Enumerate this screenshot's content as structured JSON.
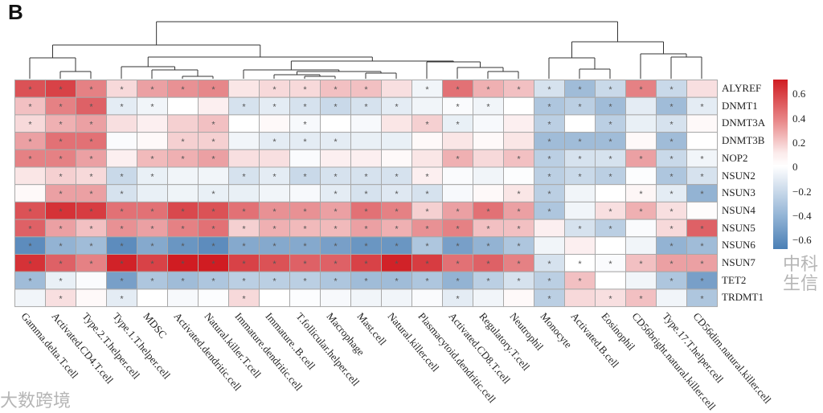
{
  "panel_label": "B",
  "watermarks": [
    "大数跨境",
    "中科生信"
  ],
  "chart_data": {
    "type": "heatmap",
    "title": "",
    "rows": [
      "ALYREF",
      "DNMT1",
      "DNMT3A",
      "DNMT3B",
      "NOP2",
      "NSUN2",
      "NSUN3",
      "NSUN4",
      "NSUN5",
      "NSUN6",
      "NSUN7",
      "TET2",
      "TRDMT1"
    ],
    "columns": [
      "Gamma.delta.T.cell",
      "Activated.CD4.T.cell",
      "Type.2.T.helper.cell",
      "Type.1.T.helper.cell",
      "MDSC",
      "Activated.dendritic.cell",
      "Natural.killer.T.cell",
      "Immature.dendritic.cell",
      "Immature..B.cell",
      "T.follicular.helper.cell",
      "Macrophage",
      "Mast.cell",
      "Natural.killer.cell",
      "Plasmacytoid.dendritic.cell",
      "Activated.CD8.T.cell",
      "Regulatory.T.cell",
      "Neutrophil",
      "Monocyte",
      "Activated.B.cell",
      "Eosinophil",
      "CD56bright.natural.killer.cell",
      "Type.17.T.helper.cell",
      "CD56dim.natural.killer.cell"
    ],
    "values": [
      [
        0.55,
        0.6,
        0.4,
        0.12,
        0.3,
        0.35,
        0.38,
        0.08,
        0.12,
        0.12,
        0.2,
        0.2,
        0.1,
        -0.05,
        0.45,
        0.25,
        0.2,
        -0.15,
        -0.35,
        -0.2,
        0.4,
        -0.2,
        0.1
      ],
      [
        0.2,
        0.4,
        0.5,
        -0.1,
        -0.05,
        0,
        0.05,
        -0.15,
        -0.1,
        -0.15,
        -0.2,
        -0.15,
        -0.1,
        -0.05,
        -0.02,
        -0.05,
        0,
        -0.3,
        -0.25,
        -0.35,
        -0.1,
        -0.35,
        -0.1
      ],
      [
        0.12,
        0.25,
        0.3,
        0.1,
        0.05,
        0.15,
        0.2,
        0,
        0.02,
        -0.03,
        0,
        -0.03,
        0.08,
        0.15,
        -0.08,
        -0.03,
        0.05,
        -0.25,
        0,
        -0.25,
        -0.08,
        -0.15,
        0.02
      ],
      [
        0.3,
        0.45,
        0.45,
        -0.02,
        0.02,
        0.15,
        0.15,
        -0.05,
        -0.1,
        -0.1,
        -0.1,
        -0.08,
        -0.08,
        0.02,
        0.08,
        0.02,
        0.08,
        -0.35,
        -0.35,
        -0.35,
        0.02,
        -0.35,
        0
      ],
      [
        0.4,
        0.4,
        0.3,
        0.05,
        0.22,
        0.25,
        0.3,
        0.1,
        0.1,
        -0.02,
        0.05,
        0.05,
        0.02,
        0.08,
        0.25,
        0.12,
        0.2,
        -0.25,
        -0.15,
        -0.15,
        0.3,
        -0.2,
        -0.05
      ],
      [
        0.08,
        0.15,
        0.12,
        -0.2,
        -0.08,
        -0.05,
        -0.05,
        -0.15,
        -0.1,
        -0.2,
        -0.15,
        -0.15,
        -0.15,
        0.05,
        -0.02,
        -0.05,
        -0.01,
        -0.25,
        -0.2,
        -0.25,
        -0.01,
        -0.3,
        -0.15
      ],
      [
        0.02,
        0.3,
        0.3,
        -0.15,
        -0.08,
        -0.06,
        -0.08,
        -0.08,
        -0.05,
        -0.03,
        -0.1,
        -0.15,
        -0.12,
        -0.15,
        -0.03,
        0.02,
        0.08,
        -0.25,
        -0.05,
        0,
        0.03,
        -0.1,
        -0.4
      ],
      [
        0.55,
        0.65,
        0.62,
        0.45,
        0.45,
        0.58,
        0.55,
        0.45,
        0.35,
        0.35,
        0.3,
        0.45,
        0.4,
        0.15,
        0.3,
        0.45,
        0.3,
        -0.3,
        -0.05,
        0.1,
        0.25,
        0.1,
        0.01
      ],
      [
        0.5,
        0.3,
        0.2,
        0.35,
        0.3,
        0.4,
        0.45,
        0.15,
        0.25,
        0.22,
        0.22,
        0.3,
        0.25,
        0.35,
        0.4,
        0.2,
        0.2,
        0.05,
        -0.15,
        -0.25,
        -0.02,
        0.12,
        0.5
      ],
      [
        -0.6,
        -0.4,
        -0.35,
        -0.6,
        -0.45,
        -0.55,
        -0.6,
        -0.45,
        -0.45,
        -0.45,
        -0.5,
        -0.55,
        -0.55,
        -0.3,
        -0.5,
        -0.4,
        -0.3,
        -0.05,
        0.05,
        0,
        -0.05,
        -0.4,
        -0.35
      ],
      [
        0.65,
        0.5,
        0.4,
        0.7,
        0.6,
        0.72,
        0.72,
        0.6,
        0.55,
        0.5,
        0.5,
        0.6,
        0.7,
        0.62,
        0.45,
        0.5,
        0.4,
        -0.15,
        0,
        -0.02,
        0.2,
        0.3,
        0.3
      ],
      [
        -0.35,
        -0.08,
        -0.02,
        -0.5,
        -0.3,
        -0.35,
        -0.3,
        -0.25,
        -0.25,
        -0.25,
        -0.3,
        -0.35,
        -0.35,
        -0.3,
        -0.4,
        -0.25,
        -0.15,
        -0.25,
        0.2,
        0,
        -0.05,
        -0.3,
        -0.5
      ],
      [
        -0.05,
        0.1,
        0.02,
        -0.1,
        0,
        -0.03,
        -0.01,
        0.12,
        0,
        -0.01,
        -0.03,
        -0.05,
        -0.05,
        -0.02,
        -0.1,
        -0.05,
        0.02,
        -0.25,
        0.12,
        0.1,
        0.2,
        -0.05,
        -0.3
      ]
    ],
    "significance_marker": "*",
    "significant": [
      [
        1,
        1,
        1,
        1,
        1,
        1,
        1,
        0,
        1,
        1,
        1,
        1,
        0,
        1,
        1,
        1,
        1,
        1,
        1,
        1,
        1,
        1,
        0
      ],
      [
        1,
        1,
        1,
        1,
        1,
        0,
        0,
        1,
        1,
        1,
        1,
        1,
        1,
        0,
        1,
        1,
        0,
        1,
        1,
        1,
        0,
        1,
        1
      ],
      [
        1,
        1,
        1,
        0,
        0,
        0,
        1,
        0,
        0,
        1,
        0,
        0,
        0,
        1,
        1,
        0,
        0,
        1,
        0,
        1,
        0,
        1,
        0
      ],
      [
        1,
        1,
        1,
        0,
        0,
        1,
        1,
        0,
        1,
        1,
        1,
        0,
        0,
        0,
        0,
        0,
        0,
        1,
        1,
        1,
        0,
        1,
        0
      ],
      [
        1,
        1,
        1,
        0,
        1,
        1,
        1,
        0,
        0,
        0,
        0,
        0,
        0,
        0,
        1,
        0,
        1,
        1,
        1,
        1,
        1,
        1,
        1
      ],
      [
        0,
        1,
        1,
        1,
        1,
        0,
        0,
        1,
        1,
        1,
        1,
        1,
        1,
        1,
        0,
        0,
        0,
        1,
        1,
        1,
        0,
        1,
        1
      ],
      [
        0,
        1,
        1,
        1,
        0,
        0,
        1,
        0,
        0,
        0,
        1,
        1,
        1,
        1,
        0,
        0,
        1,
        1,
        0,
        0,
        1,
        1,
        1
      ],
      [
        1,
        1,
        1,
        1,
        1,
        1,
        1,
        1,
        1,
        1,
        1,
        1,
        1,
        1,
        1,
        1,
        1,
        1,
        0,
        1,
        1,
        1,
        0
      ],
      [
        1,
        1,
        1,
        1,
        1,
        1,
        1,
        1,
        1,
        1,
        1,
        1,
        1,
        1,
        1,
        1,
        1,
        0,
        1,
        1,
        0,
        1,
        1
      ],
      [
        1,
        1,
        1,
        1,
        1,
        1,
        1,
        1,
        1,
        1,
        1,
        1,
        1,
        1,
        1,
        1,
        1,
        0,
        0,
        0,
        0,
        1,
        1
      ],
      [
        1,
        1,
        1,
        1,
        1,
        1,
        1,
        1,
        1,
        1,
        1,
        1,
        1,
        1,
        1,
        1,
        1,
        1,
        1,
        1,
        1,
        1,
        1
      ],
      [
        1,
        1,
        0,
        1,
        1,
        1,
        1,
        1,
        1,
        1,
        1,
        1,
        1,
        1,
        1,
        1,
        1,
        1,
        1,
        0,
        0,
        1,
        1
      ],
      [
        0,
        1,
        0,
        1,
        0,
        0,
        0,
        1,
        0,
        0,
        0,
        0,
        0,
        0,
        1,
        0,
        0,
        1,
        0,
        1,
        1,
        0,
        1
      ]
    ],
    "colorbar": {
      "ticks": [
        "0.6",
        "0.4",
        "0.2",
        "0",
        "−0.2",
        "−0.4",
        "−0.6"
      ],
      "tick_values": [
        0.6,
        0.4,
        0.2,
        0,
        -0.2,
        -0.4,
        -0.6
      ],
      "range": [
        -0.67,
        0.72
      ],
      "low_color": "#4a7fb5",
      "mid_color": "#ffffff",
      "high_color": "#d01c22"
    },
    "column_dendrogram": true,
    "grid": true
  }
}
